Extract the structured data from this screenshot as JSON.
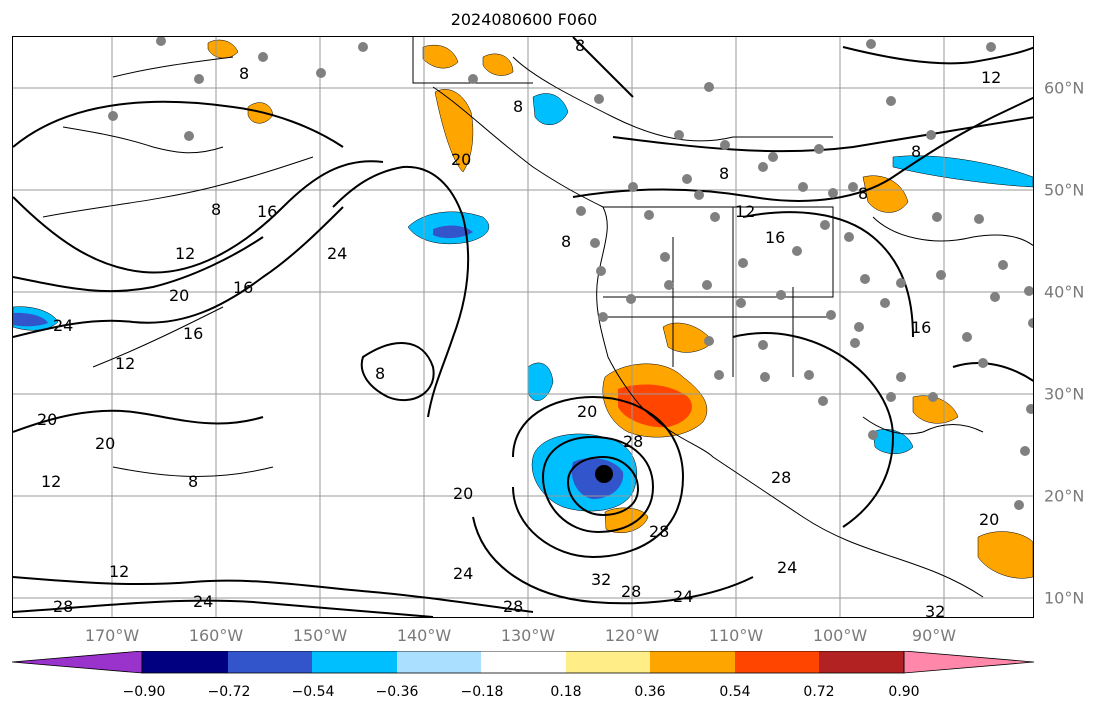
{
  "title": "2024080600 F060",
  "map": {
    "projection_extent": {
      "lon_min": -180,
      "lon_max": -80,
      "lat_min": 8,
      "lat_max": 65
    },
    "contour_color": "#000000",
    "gridline_color": "#999999",
    "coastline_color": "#000000",
    "station_marker_color": "#808080",
    "storm_center_marker_color": "#000000",
    "contour_labels": [
      "8",
      "8",
      "8",
      "8",
      "8",
      "8",
      "8",
      "8",
      "8",
      "8",
      "12",
      "12",
      "12",
      "12",
      "12",
      "12",
      "16",
      "16",
      "16",
      "16",
      "16",
      "20",
      "20",
      "20",
      "20",
      "20",
      "20",
      "20",
      "24",
      "24",
      "24",
      "24",
      "24",
      "24",
      "28",
      "28",
      "28",
      "28",
      "28",
      "28",
      "32",
      "32"
    ]
  },
  "axes": {
    "lon_ticks": [
      "170°W",
      "160°W",
      "150°W",
      "140°W",
      "130°W",
      "120°W",
      "110°W",
      "100°W",
      "90°W"
    ],
    "lat_ticks": [
      "60°N",
      "50°N",
      "40°N",
      "30°N",
      "20°N",
      "10°N"
    ]
  },
  "colorbar": {
    "colors": [
      "#9933cc",
      "#000080",
      "#3355cc",
      "#00bfff",
      "#aadfff",
      "#ffffff",
      "#ffee88",
      "#ffa500",
      "#ff4500",
      "#b22222",
      "#ff88aa"
    ],
    "tick_labels": [
      "−0.90",
      "−0.72",
      "−0.54",
      "−0.36",
      "−0.18",
      "0.18",
      "0.36",
      "0.54",
      "0.72",
      "0.90"
    ],
    "extend": "both"
  }
}
